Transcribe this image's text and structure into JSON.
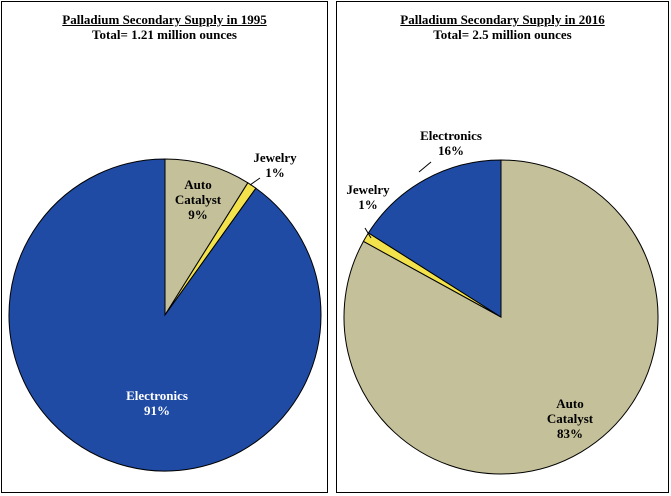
{
  "chart_data": [
    {
      "type": "pie",
      "title": "Palladium Secondary Supply in 1995",
      "subtitle": "Total= 1.21 million ounces",
      "slices": [
        {
          "label": "Auto Catalyst",
          "label_lines": [
            "Auto",
            "Catalyst"
          ],
          "pct_label": "9%",
          "value": 9,
          "color": "#C4C09A"
        },
        {
          "label": "Jewelry",
          "label_lines": [
            "Jewelry"
          ],
          "pct_label": "1%",
          "value": 1,
          "color": "#F2E24B"
        },
        {
          "label": "Electronics",
          "label_lines": [
            "Electronics"
          ],
          "pct_label": "91%",
          "value": 91,
          "color": "#1F4BA5"
        }
      ]
    },
    {
      "type": "pie",
      "title": "Palladium Secondary Supply in 2016",
      "subtitle": "Total= 2.5 million ounces",
      "slices": [
        {
          "label": "Auto Catalyst",
          "label_lines": [
            "Auto",
            "Catalyst"
          ],
          "pct_label": "83%",
          "value": 83,
          "color": "#C4C09A"
        },
        {
          "label": "Jewelry",
          "label_lines": [
            "Jewelry"
          ],
          "pct_label": "1%",
          "value": 1,
          "color": "#F2E24B"
        },
        {
          "label": "Electronics",
          "label_lines": [
            "Electronics"
          ],
          "pct_label": "16%",
          "value": 16,
          "color": "#1F4BA5"
        }
      ]
    }
  ]
}
